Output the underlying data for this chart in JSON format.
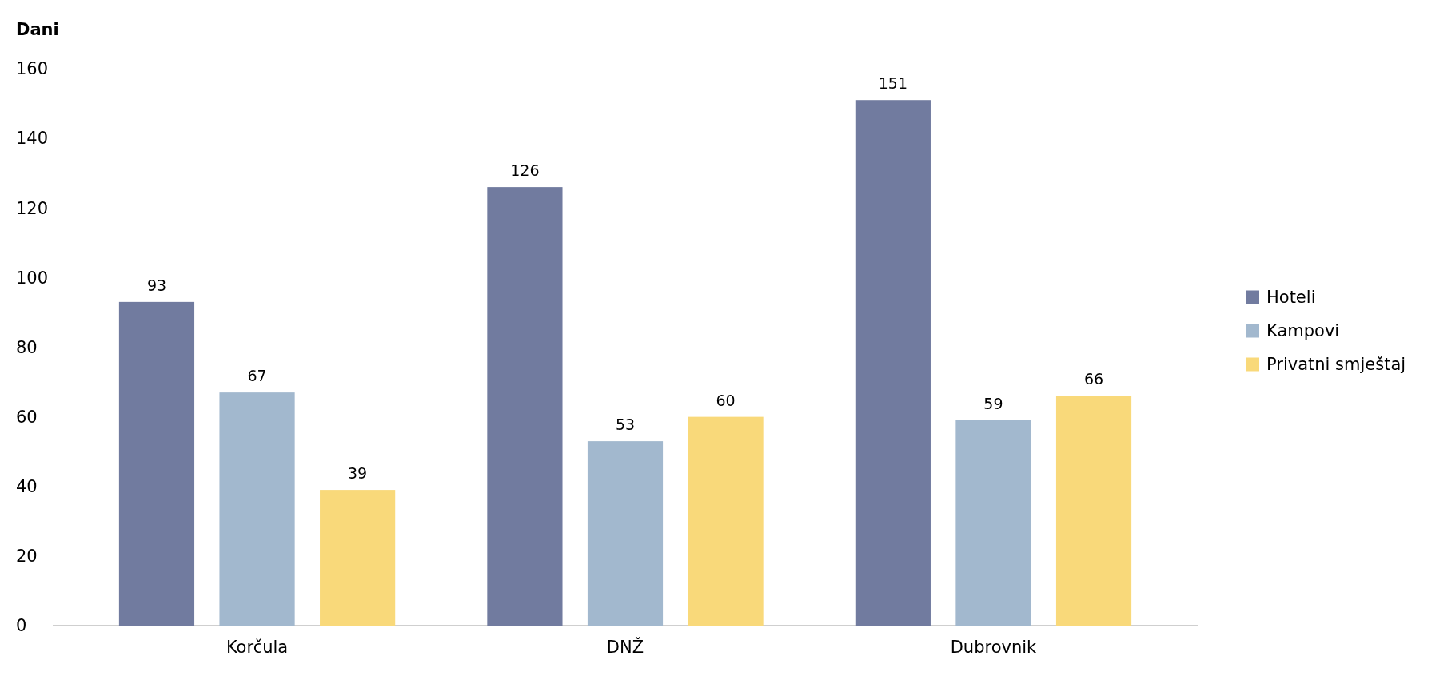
{
  "chart_data": {
    "type": "bar",
    "ylabel": "Dani",
    "categories": [
      "Korčula",
      "DNŽ",
      "Dubrovnik"
    ],
    "series": [
      {
        "name": "Hoteli",
        "color": "#717b9f",
        "values": [
          93,
          126,
          151
        ]
      },
      {
        "name": "Kampovi",
        "color": "#a2b8ce",
        "values": [
          67,
          53,
          59
        ]
      },
      {
        "name": "Privatni smještaj",
        "color": "#f9d97a",
        "values": [
          39,
          60,
          66
        ]
      }
    ],
    "ylim": [
      0,
      160
    ],
    "yticks": [
      0,
      20,
      40,
      60,
      80,
      100,
      120,
      140,
      160
    ],
    "data_labels": true,
    "legend": "right",
    "grid": false
  }
}
